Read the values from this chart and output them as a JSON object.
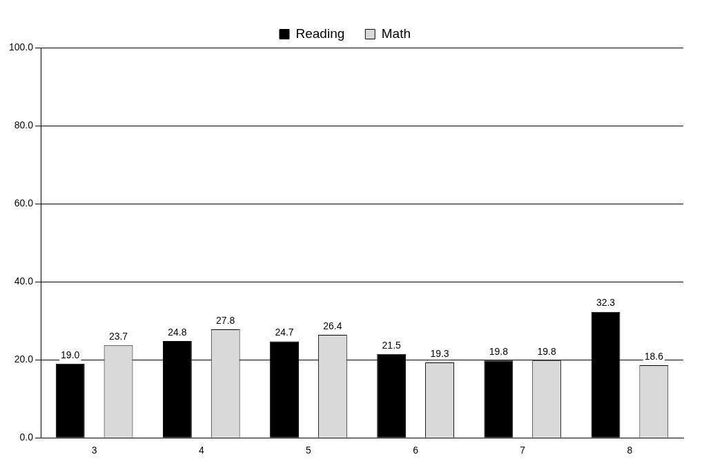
{
  "chart_data": {
    "type": "bar",
    "categories": [
      "3",
      "4",
      "5",
      "6",
      "7",
      "8"
    ],
    "series": [
      {
        "name": "Reading",
        "color": "#000000",
        "values": [
          19.0,
          24.8,
          24.7,
          21.5,
          19.8,
          32.3
        ],
        "value_labels": [
          "19.0",
          "24.8",
          "24.7",
          "21.5",
          "19.8",
          "32.3"
        ]
      },
      {
        "name": "Math",
        "color": "#d9d9d9",
        "values": [
          23.7,
          27.8,
          26.4,
          19.3,
          19.8,
          18.6
        ],
        "value_labels": [
          "23.7",
          "27.8",
          "26.4",
          "19.3",
          "19.8",
          "18.6"
        ]
      }
    ],
    "ylim": [
      0,
      100
    ],
    "yticks": [
      {
        "value": 0,
        "label": "0.0"
      },
      {
        "value": 20,
        "label": "20.0"
      },
      {
        "value": 40,
        "label": "40.0"
      },
      {
        "value": 60,
        "label": "60.0"
      },
      {
        "value": 80,
        "label": "80.0"
      },
      {
        "value": 100,
        "label": "100.0"
      }
    ],
    "grid": "y",
    "legend": "top"
  }
}
